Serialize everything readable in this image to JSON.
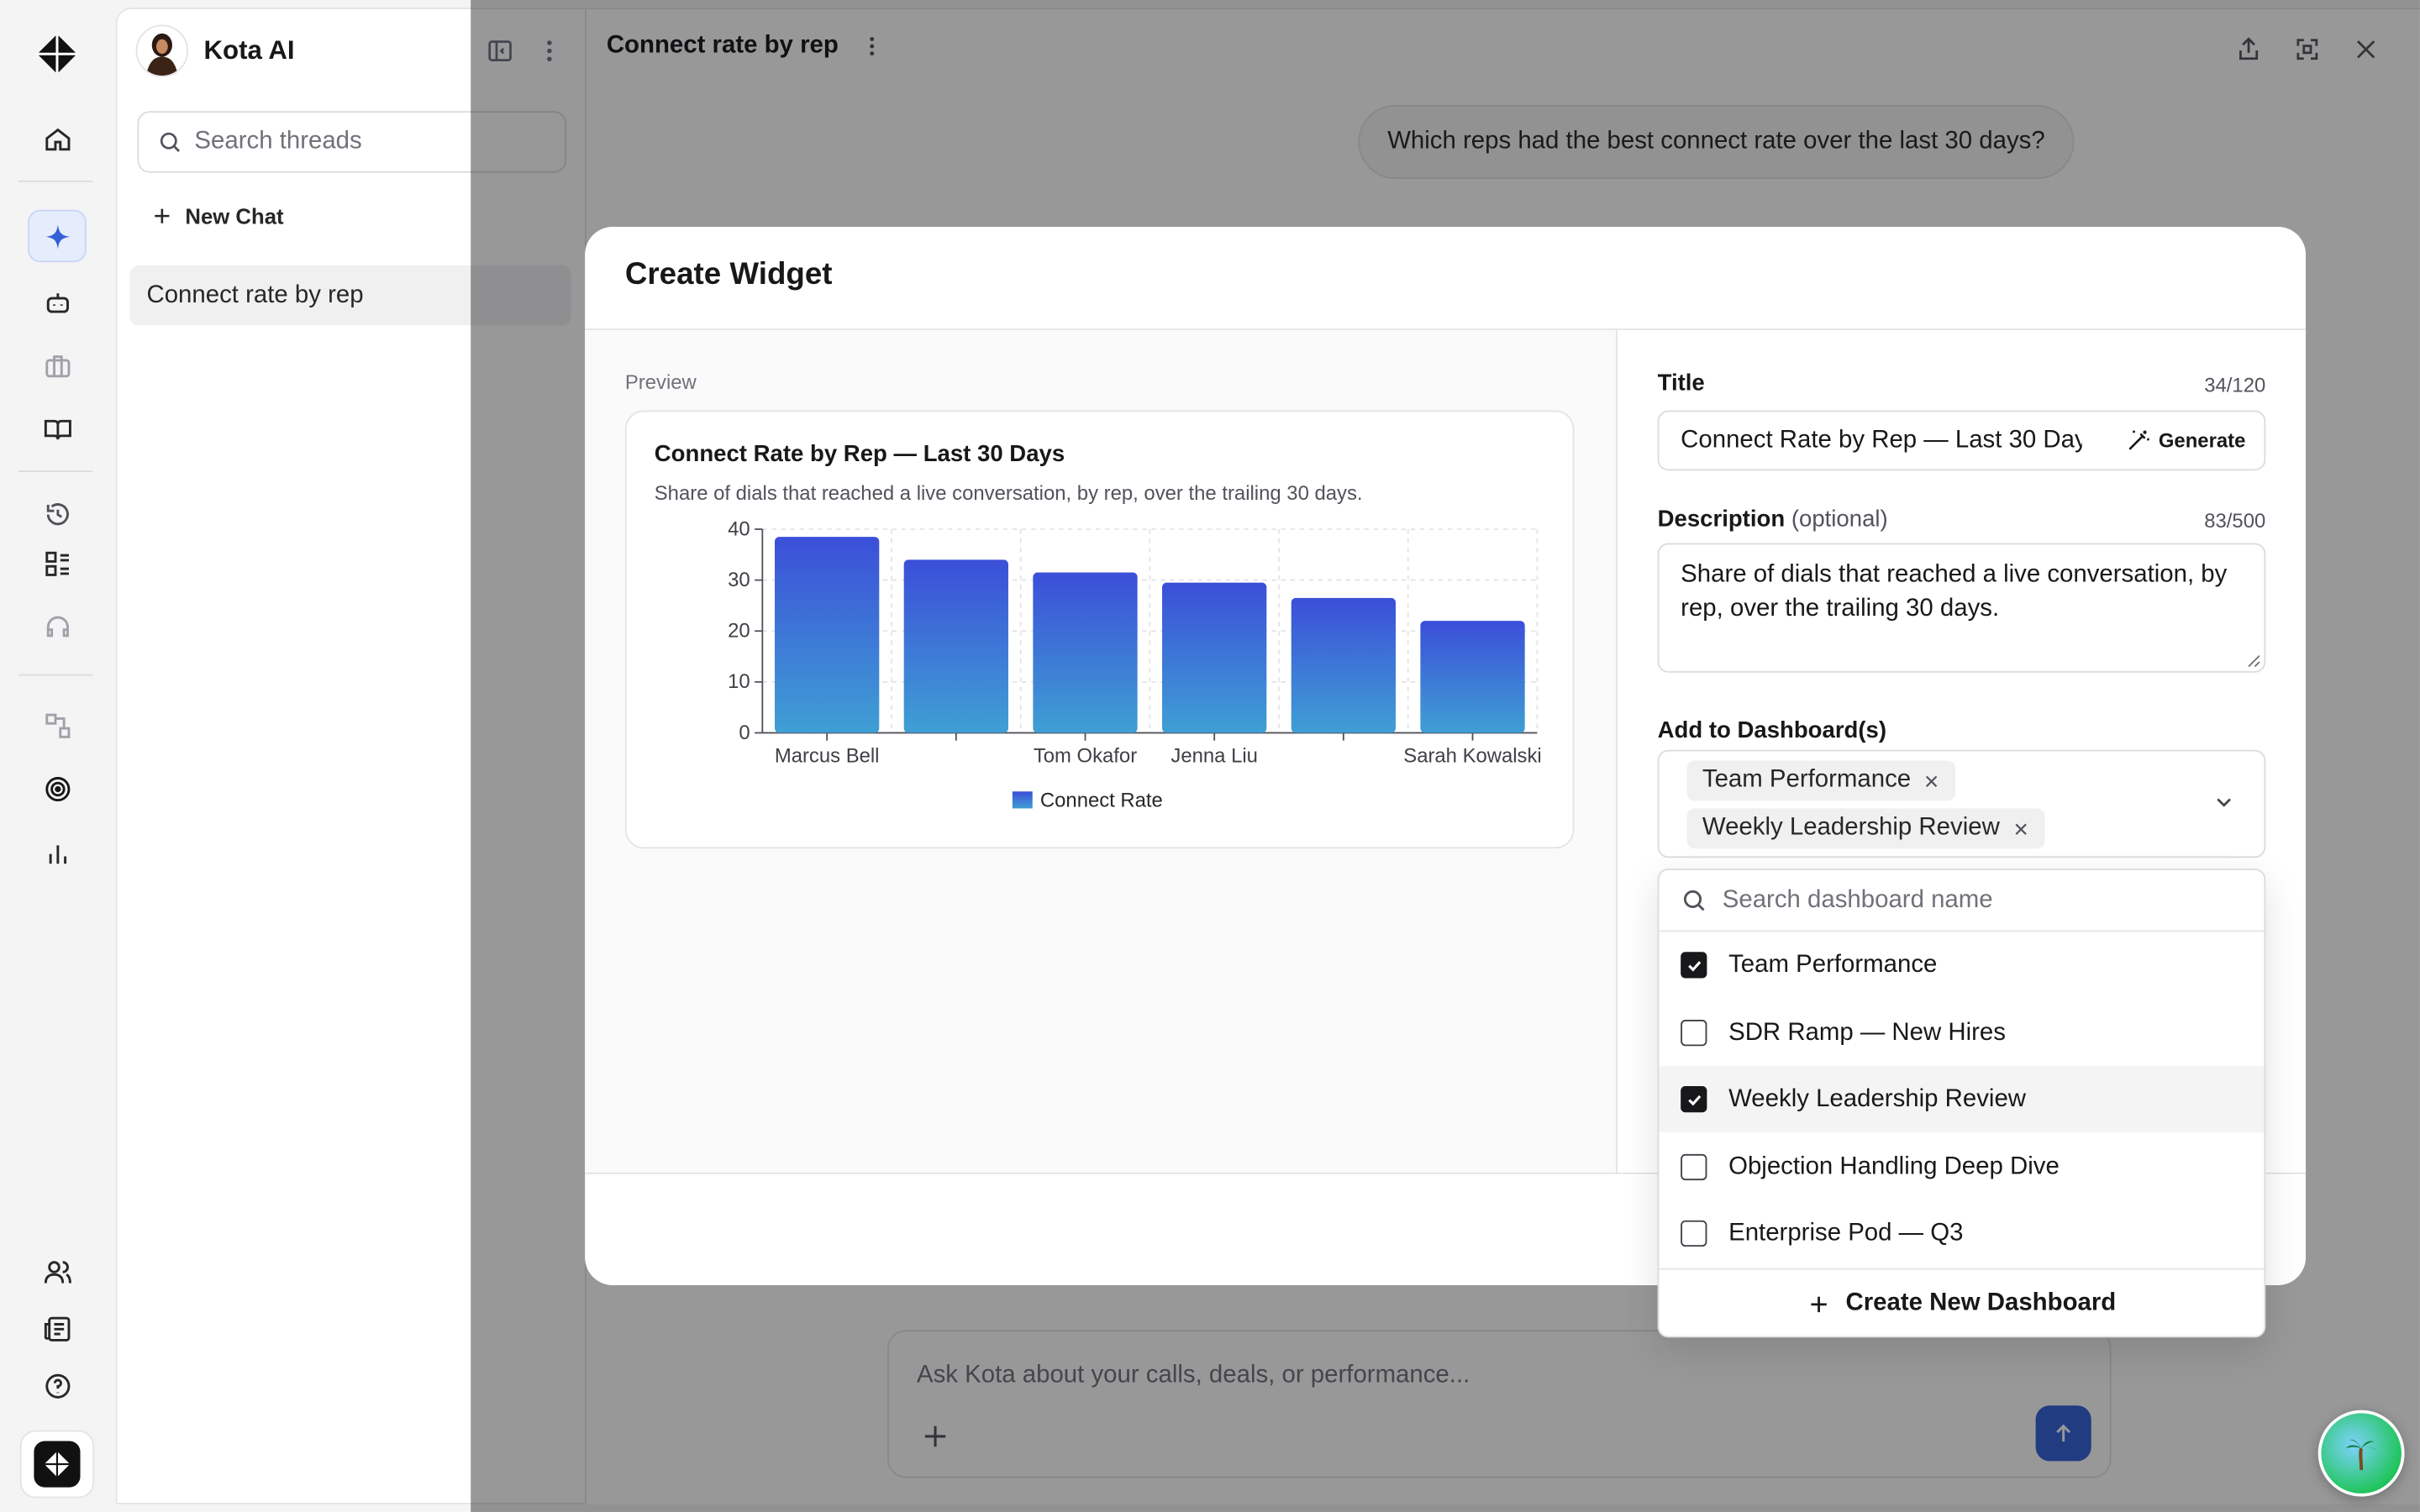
{
  "app": {
    "name": "Kota AI"
  },
  "threads": {
    "search_placeholder": "Search threads",
    "new_chat_label": "New Chat",
    "items": [
      {
        "label": "Connect rate by rep"
      }
    ]
  },
  "main": {
    "title": "Connect rate by rep",
    "user_message": "Which reps had the best connect rate over the last 30 days?",
    "composer_placeholder": "Ask Kota about your calls, deals, or performance..."
  },
  "modal": {
    "title": "Create Widget",
    "preview_label": "Preview",
    "title_label": "Title",
    "title_count": "34/120",
    "title_value": "Connect Rate by Rep — Last 30 Days",
    "generate_label": "Generate",
    "description_label": "Description",
    "description_optional": "(optional)",
    "description_count": "83/500",
    "description_value": "Share of dials that reached a live conversation, by rep, over the trailing 30 days.",
    "dashboards_label": "Add to Dashboard(s)",
    "selected_chips": [
      "Team Performance",
      "Weekly Leadership Review"
    ],
    "dropdown": {
      "search_placeholder": "Search dashboard name",
      "options": [
        {
          "label": "Team Performance",
          "checked": true
        },
        {
          "label": "SDR Ramp — New Hires",
          "checked": false
        },
        {
          "label": "Weekly Leadership Review",
          "checked": true
        },
        {
          "label": "Objection Handling Deep Dive",
          "checked": false
        },
        {
          "label": "Enterprise Pod — Q3",
          "checked": false
        }
      ],
      "create_label": "Create New Dashboard"
    }
  },
  "chart_data": {
    "type": "bar",
    "title": "Connect Rate by Rep — Last 30 Days",
    "subtitle": "Share of dials that reached a live conversation, by rep, over the trailing 30 days.",
    "categories": [
      "Marcus Bell",
      "",
      "Tom Okafor",
      "Jenna Liu",
      "",
      "Sarah Kowalski"
    ],
    "series": [
      {
        "name": "Connect Rate",
        "values": [
          38.5,
          34,
          31.5,
          29.5,
          26.5,
          22
        ]
      }
    ],
    "ylim": [
      0,
      40
    ],
    "yticks": [
      0,
      10,
      20,
      30,
      40
    ],
    "grid": true,
    "legend": "bottom",
    "colors": {
      "bar_top": "#3b4fd8",
      "bar_bottom": "#3f9fd4"
    }
  },
  "colors": {
    "accent": "#3461d8",
    "overlay": "rgba(9,9,11,0.42)"
  }
}
